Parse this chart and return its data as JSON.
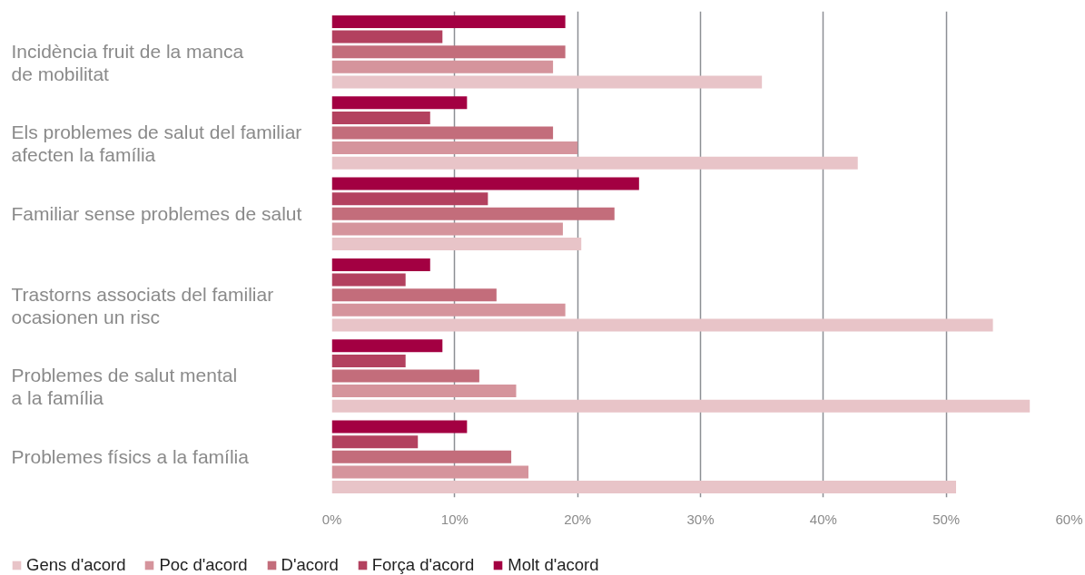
{
  "chart_data": {
    "type": "bar",
    "orientation": "horizontal",
    "categories": [
      "Incidència fruit de la manca\nde mobilitat",
      "Els problemes de salut del familiar\nafecten la família",
      "Familiar sense problemes de salut",
      "Trastorns associats del familiar\nocasionen un risc",
      "Problemes de salut mental\na la família",
      "Problemes físics a la família"
    ],
    "series": [
      {
        "name": "Gens d'acord",
        "color": "#e8c4c8",
        "values": [
          35,
          42.8,
          20.3,
          53.8,
          56.8,
          50.8
        ]
      },
      {
        "name": "Poc d'acord",
        "color": "#d5949c",
        "values": [
          18,
          20,
          18.8,
          19,
          15,
          16
        ]
      },
      {
        "name": "D'acord",
        "color": "#c36d7b",
        "values": [
          19,
          18,
          23,
          13.4,
          12,
          14.6
        ]
      },
      {
        "name": "Força d'acord",
        "color": "#b3415f",
        "values": [
          9,
          8,
          12.7,
          6,
          6,
          7
        ]
      },
      {
        "name": "Molt d'acord",
        "color": "#a30042",
        "values": [
          19,
          11,
          25,
          8,
          9,
          11
        ]
      }
    ],
    "xlim": [
      0,
      60
    ],
    "xticks": [
      {
        "value": 0,
        "label": "0%"
      },
      {
        "value": 10,
        "label": "10%"
      },
      {
        "value": 20,
        "label": "20%"
      },
      {
        "value": 30,
        "label": "30%"
      },
      {
        "value": 40,
        "label": "40%"
      },
      {
        "value": 50,
        "label": "50%"
      },
      {
        "value": 60,
        "label": "60%"
      }
    ],
    "grid": "x",
    "legend": "bottom left"
  }
}
